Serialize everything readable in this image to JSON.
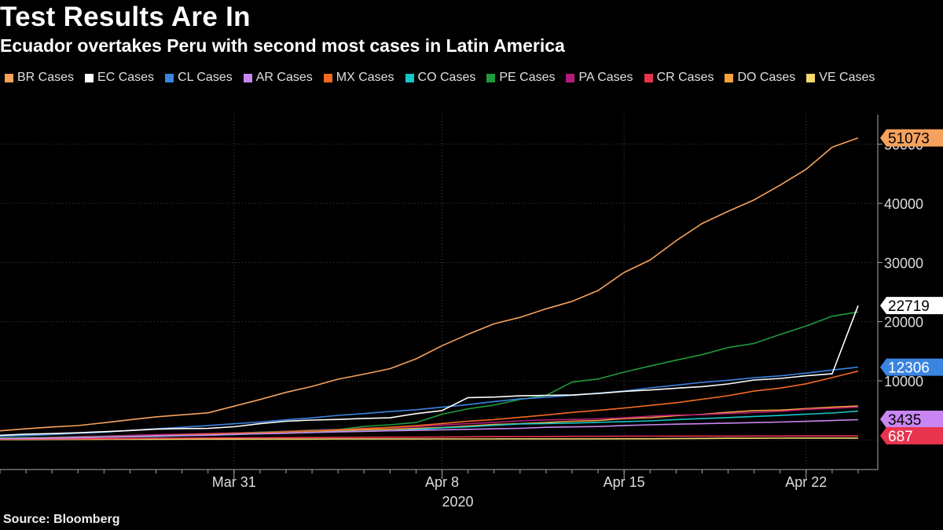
{
  "title": "Test Results Are In",
  "subtitle": "Ecuador overtakes Peru with second most cases in Latin America",
  "source": "Source: Bloomberg",
  "chart_data": {
    "type": "line",
    "x": [
      "2020-03-22",
      "2020-03-23",
      "2020-03-24",
      "2020-03-25",
      "2020-03-26",
      "2020-03-27",
      "2020-03-28",
      "2020-03-29",
      "2020-03-30",
      "2020-03-31",
      "2020-04-01",
      "2020-04-02",
      "2020-04-03",
      "2020-04-04",
      "2020-04-05",
      "2020-04-06",
      "2020-04-07",
      "2020-04-08",
      "2020-04-09",
      "2020-04-10",
      "2020-04-11",
      "2020-04-12",
      "2020-04-13",
      "2020-04-14",
      "2020-04-15",
      "2020-04-16",
      "2020-04-17",
      "2020-04-18",
      "2020-04-19",
      "2020-04-20",
      "2020-04-21",
      "2020-04-22",
      "2020-04-23",
      "2020-04-24"
    ],
    "x_ticks": [
      {
        "date": "2020-03-31",
        "label": "Mar 31"
      },
      {
        "date": "2020-04-08",
        "label": "Apr 8"
      },
      {
        "date": "2020-04-15",
        "label": "Apr 15"
      },
      {
        "date": "2020-04-22",
        "label": "Apr 22"
      }
    ],
    "x_year_label": "2020",
    "y_ticks": [
      10000,
      20000,
      30000,
      40000,
      50000
    ],
    "ylim": [
      -5000,
      55000
    ],
    "grid": true,
    "legend_position": "top",
    "series": [
      {
        "name": "BR Cases",
        "color": "#f5a25d",
        "values": [
          1546,
          1891,
          2201,
          2433,
          2915,
          3417,
          3904,
          4256,
          4579,
          5717,
          6836,
          8044,
          9056,
          10278,
          11130,
          12056,
          13717,
          15927,
          17857,
          19638,
          20727,
          22169,
          23430,
          25262,
          28320,
          30425,
          33682,
          36599,
          38654,
          40581,
          43079,
          45757,
          49492,
          51073
        ]
      },
      {
        "name": "EC Cases",
        "color": "#ffffff",
        "values": [
          789,
          981,
          1082,
          1211,
          1403,
          1595,
          1823,
          1924,
          1962,
          2240,
          2748,
          3163,
          3368,
          3465,
          3646,
          3747,
          4450,
          4965,
          7161,
          7257,
          7466,
          7529,
          7603,
          7858,
          8225,
          8450,
          8755,
          9022,
          9468,
          10128,
          10398,
          10850,
          11183,
          22719
        ]
      },
      {
        "name": "CL Cases",
        "color": "#3b84e0",
        "values": [
          632,
          746,
          922,
          1142,
          1306,
          1610,
          1909,
          2139,
          2449,
          2738,
          3031,
          3404,
          3737,
          4161,
          4471,
          4815,
          5116,
          5546,
          5972,
          6501,
          6927,
          7213,
          7525,
          7917,
          8273,
          8807,
          9252,
          9730,
          10088,
          10505,
          10832,
          11296,
          11812,
          12306
        ]
      },
      {
        "name": "AR Cases",
        "color": "#c986f2",
        "values": [
          225,
          266,
          301,
          387,
          502,
          589,
          690,
          745,
          820,
          966,
          1054,
          1133,
          1265,
          1353,
          1451,
          1554,
          1628,
          1715,
          1795,
          1894,
          1975,
          2142,
          2208,
          2277,
          2443,
          2571,
          2669,
          2758,
          2839,
          2941,
          3031,
          3144,
          3288,
          3435
        ]
      },
      {
        "name": "MX Cases",
        "color": "#f26a21",
        "values": [
          251,
          316,
          367,
          405,
          475,
          585,
          717,
          848,
          993,
          1094,
          1215,
          1378,
          1510,
          1688,
          1890,
          2143,
          2439,
          2785,
          3181,
          3441,
          3844,
          4219,
          4661,
          5014,
          5399,
          5847,
          6297,
          6875,
          7497,
          8261,
          8772,
          9501,
          10544,
          11633
        ]
      },
      {
        "name": "CO Cases",
        "color": "#17c6c9",
        "values": [
          231,
          277,
          378,
          470,
          491,
          539,
          608,
          702,
          798,
          906,
          1065,
          1161,
          1267,
          1406,
          1485,
          1579,
          1780,
          2054,
          2223,
          2473,
          2709,
          2776,
          2852,
          2979,
          3105,
          3233,
          3439,
          3621,
          3792,
          3977,
          4149,
          4356,
          4561,
          4881
        ]
      },
      {
        "name": "PE Cases",
        "color": "#1f9a3b",
        "values": [
          363,
          395,
          416,
          480,
          580,
          635,
          671,
          852,
          950,
          1065,
          1323,
          1414,
          1595,
          1746,
          2281,
          2561,
          2954,
          4342,
          5256,
          5897,
          6848,
          7519,
          9784,
          10303,
          11475,
          12491,
          13489,
          14420,
          15628,
          16325,
          17837,
          19250,
          20914,
          21648
        ]
      },
      {
        "name": "PA Cases",
        "color": "#b51c7a",
        "values": [
          313,
          345,
          443,
          558,
          674,
          786,
          901,
          989,
          1075,
          1181,
          1317,
          1475,
          1673,
          1801,
          1988,
          2100,
          2249,
          2528,
          2752,
          2974,
          3234,
          3400,
          3472,
          3574,
          3751,
          4016,
          4210,
          4273,
          4467,
          4658,
          4821,
          5166,
          5338,
          5538
        ]
      },
      {
        "name": "CR Cases",
        "color": "#e8344e",
        "values": [
          134,
          158,
          177,
          201,
          231,
          263,
          295,
          314,
          330,
          347,
          375,
          396,
          416,
          435,
          454,
          467,
          483,
          502,
          539,
          558,
          577,
          595,
          612,
          618,
          626,
          642,
          649,
          655,
          660,
          662,
          669,
          681,
          686,
          687
        ]
      },
      {
        "name": "DO Cases",
        "color": "#f7a43c",
        "values": [
          202,
          245,
          312,
          392,
          488,
          581,
          719,
          859,
          901,
          1109,
          1284,
          1380,
          1488,
          1578,
          1745,
          1828,
          1956,
          2111,
          2349,
          2620,
          2759,
          2967,
          3167,
          3286,
          3614,
          3755,
          4126,
          4335,
          4680,
          4964,
          5044,
          5300,
          5543,
          5749
        ]
      },
      {
        "name": "VE Cases",
        "color": "#f5d76e",
        "values": [
          70,
          77,
          84,
          91,
          106,
          107,
          119,
          135,
          135,
          143,
          146,
          153,
          155,
          159,
          165,
          166,
          167,
          171,
          175,
          181,
          189,
          189,
          189,
          193,
          197,
          204,
          227,
          256,
          285,
          288,
          311,
          318,
          323,
          325
        ]
      }
    ],
    "end_labels": [
      {
        "value": 51073,
        "text": "51073",
        "color": "#f5a25d",
        "text_color": "#000000"
      },
      {
        "value": 22719,
        "text": "22719",
        "color": "#ffffff",
        "text_color": "#000000"
      },
      {
        "value": 12306,
        "text": "12306",
        "color": "#3b84e0",
        "text_color": "#ffffff"
      },
      {
        "value": 3435,
        "text": "3435",
        "color": "#c986f2",
        "text_color": "#000000"
      },
      {
        "value": 687,
        "text": "687",
        "color": "#e8344e",
        "text_color": "#ffffff"
      }
    ]
  }
}
